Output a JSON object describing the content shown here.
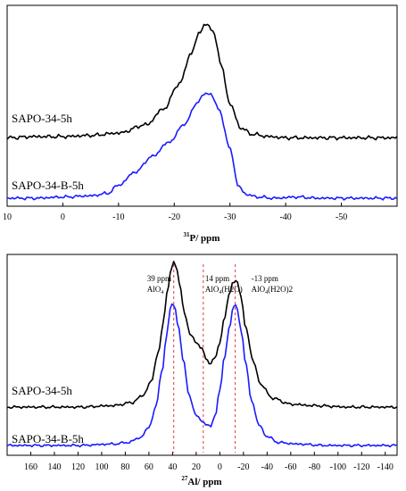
{
  "chart_data": [
    {
      "type": "line",
      "xlabel_sup": "31",
      "xlabel_main": "P/ ppm",
      "xlim": [
        10,
        -60
      ],
      "ticks": [
        10,
        0,
        -10,
        -20,
        -30,
        -40,
        -50
      ],
      "tick_labels": [
        "10",
        "0",
        "-10",
        "-20",
        "-30",
        "-40",
        "-50"
      ],
      "series": [
        {
          "name": "SAPO-34-5h",
          "color": "#000000",
          "x": [
            10,
            5,
            0,
            -5,
            -10,
            -15,
            -18,
            -21,
            -23,
            -24.5,
            -25.5,
            -27,
            -28.5,
            -30,
            -32,
            -34,
            -37,
            -40,
            -45,
            -50,
            -55,
            -60
          ],
          "y": [
            0.02,
            0.03,
            0.03,
            0.04,
            0.06,
            0.13,
            0.26,
            0.48,
            0.73,
            0.9,
            0.98,
            0.92,
            0.62,
            0.3,
            0.1,
            0.05,
            0.03,
            0.02,
            0.02,
            0.02,
            0.02,
            0.02
          ]
        },
        {
          "name": "SAPO-34-B-5h",
          "color": "#1a1aff",
          "x": [
            10,
            5,
            0,
            -5,
            -8,
            -10,
            -13,
            -16,
            -19,
            -22,
            -24,
            -25.5,
            -26.5,
            -28,
            -30,
            -31.5,
            -33,
            -35,
            -38,
            -42,
            -46,
            -50,
            -55,
            -60
          ],
          "y": [
            0.0,
            0.0,
            0.01,
            0.02,
            0.04,
            0.11,
            0.22,
            0.35,
            0.47,
            0.63,
            0.8,
            0.88,
            0.88,
            0.75,
            0.42,
            0.1,
            0.03,
            0.01,
            0.0,
            0.01,
            0.0,
            0.0,
            0.0,
            0.0
          ]
        }
      ]
    },
    {
      "type": "line",
      "xlabel_sup": "27",
      "xlabel_main": "Al/ ppm",
      "xlim": [
        180,
        -150
      ],
      "ticks": [
        160,
        140,
        120,
        100,
        80,
        60,
        40,
        20,
        0,
        -20,
        -40,
        -60,
        -80,
        -100,
        -120,
        -140
      ],
      "tick_labels": [
        "160",
        "140",
        "120",
        "100",
        "80",
        "60",
        "40",
        "20",
        "0",
        "-20",
        "-40",
        "-60",
        "-80",
        "-100",
        "-120",
        "-140"
      ],
      "series": [
        {
          "name": "SAPO-34-5h",
          "color": "#000000",
          "x": [
            180,
            120,
            90,
            75,
            65,
            58,
            52,
            48,
            44,
            41,
            39,
            37,
            34,
            30,
            25,
            20,
            15,
            12,
            8,
            4,
            0,
            -4,
            -8,
            -11,
            -13,
            -15,
            -18,
            -22,
            -28,
            -35,
            -45,
            -60,
            -80,
            -110,
            -150
          ],
          "y": [
            0.0,
            0.0,
            0.01,
            0.03,
            0.08,
            0.18,
            0.38,
            0.58,
            0.82,
            0.97,
            1.0,
            0.97,
            0.85,
            0.65,
            0.5,
            0.45,
            0.4,
            0.34,
            0.3,
            0.34,
            0.45,
            0.62,
            0.78,
            0.86,
            0.88,
            0.86,
            0.75,
            0.55,
            0.32,
            0.15,
            0.06,
            0.02,
            0.01,
            0.0,
            0.0
          ]
        },
        {
          "name": "SAPO-34-B-5h",
          "color": "#1a1aff",
          "x": [
            180,
            120,
            90,
            78,
            68,
            60,
            54,
            49,
            45,
            42,
            40,
            38,
            35,
            31,
            26,
            20,
            15,
            12,
            8,
            4,
            0,
            -4,
            -8,
            -11,
            -13,
            -15,
            -18,
            -22,
            -27,
            -33,
            -40,
            -50,
            -65,
            -90,
            -120,
            -150
          ],
          "y": [
            0.0,
            0.0,
            0.01,
            0.02,
            0.05,
            0.12,
            0.27,
            0.5,
            0.75,
            0.92,
            0.97,
            0.93,
            0.8,
            0.58,
            0.34,
            0.2,
            0.17,
            0.14,
            0.13,
            0.2,
            0.38,
            0.6,
            0.8,
            0.92,
            0.96,
            0.92,
            0.78,
            0.55,
            0.3,
            0.14,
            0.06,
            0.02,
            0.01,
            0.0,
            0.0,
            0.0
          ]
        }
      ],
      "markers": [
        {
          "x": 39,
          "label1": "39 ppm",
          "label2": "AlO",
          "label2_sub": "4",
          "label2_tail": ""
        },
        {
          "x": 14,
          "label1": "14 ppm",
          "label2": "AlO",
          "label2_sub": "4",
          "label2_tail": "(H2O)"
        },
        {
          "x": -13,
          "label1": "-13 ppm",
          "label2": "AlO",
          "label2_sub": "4",
          "label2_tail": "(H2O)2"
        }
      ]
    }
  ]
}
